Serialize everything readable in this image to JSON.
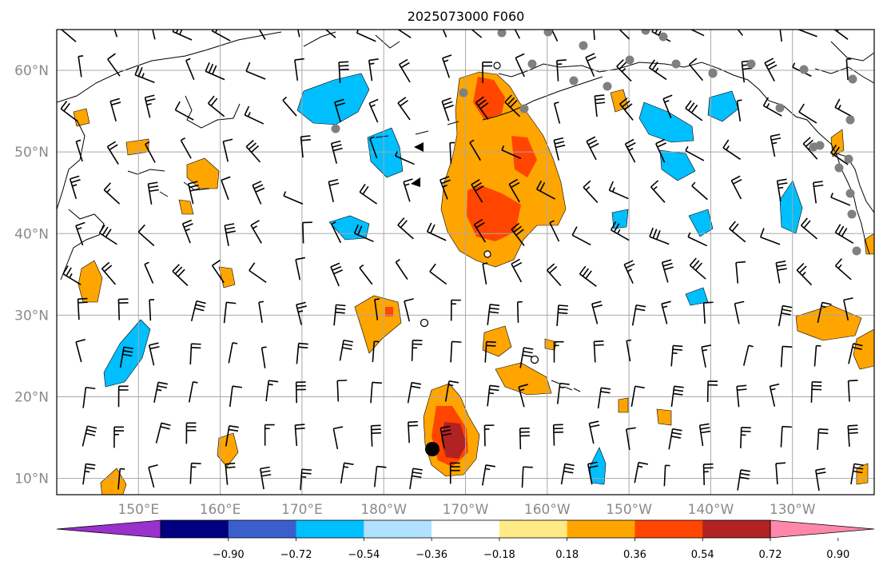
{
  "title": "2025073000 F060",
  "map": {
    "lat_labels": [
      "60°N",
      "50°N",
      "40°N",
      "30°N",
      "20°N",
      "10°N"
    ],
    "lon_labels": [
      "150°E",
      "160°E",
      "170°E",
      "180°W",
      "170°W",
      "160°W",
      "150°W",
      "140°W",
      "130°W"
    ],
    "lat_values": [
      60,
      50,
      40,
      30,
      20,
      10
    ],
    "lon_values": [
      150,
      160,
      170,
      180,
      190,
      200,
      210,
      220,
      230
    ],
    "lon_range": [
      140,
      240
    ],
    "lat_range": [
      8,
      65
    ],
    "grid": true,
    "fill_colors": {
      "pos_018_036": "#ffeb85",
      "pos_036_054": "#ffa500",
      "pos_054_072": "#ff4500",
      "pos_072_090": "#b22222",
      "neg_036_054": "#00bfff",
      "neg_054_072": "#3a5fcd"
    },
    "station_marker_color": "#808080",
    "storm_marker_color": "#000000"
  },
  "colorbar": {
    "ticks": [
      "−0.90",
      "−0.72",
      "−0.54",
      "−0.36",
      "−0.18",
      "0.18",
      "0.36",
      "0.54",
      "0.72",
      "0.90"
    ],
    "colors": [
      "#9932cc",
      "#000080",
      "#3a5fcd",
      "#00bfff",
      "#b0e2ff",
      "#ffffff",
      "#ffeb85",
      "#ffa500",
      "#ff4500",
      "#b22222",
      "#ff88aa"
    ]
  }
}
